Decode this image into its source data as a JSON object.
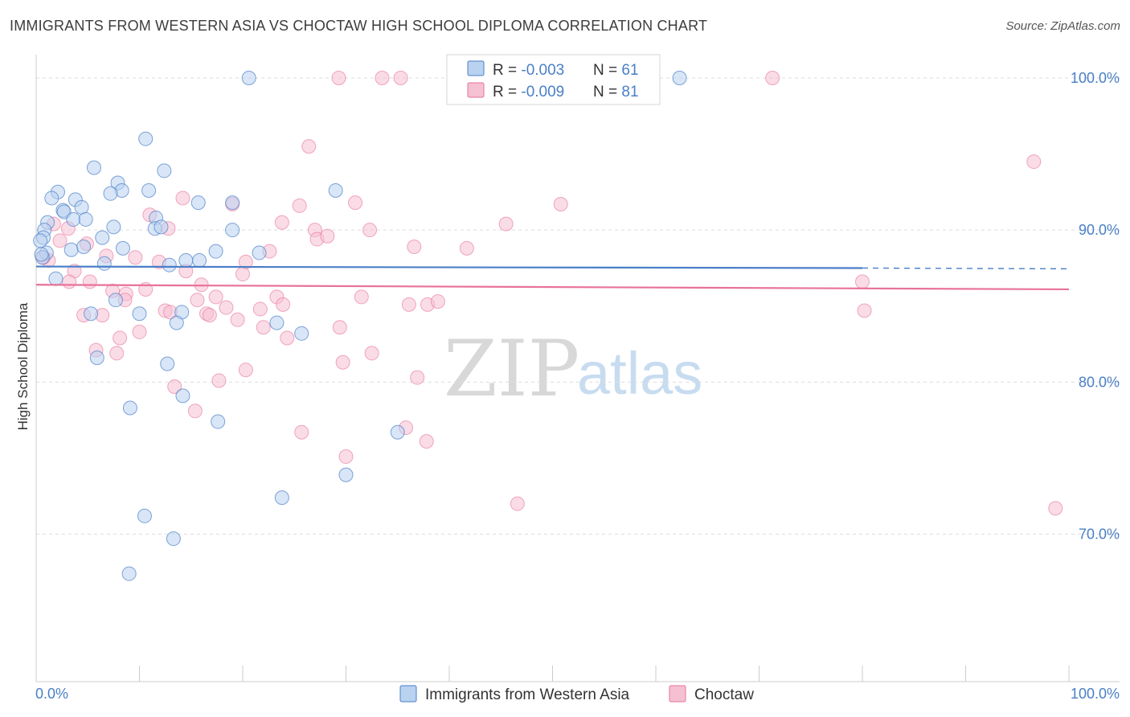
{
  "title": "IMMIGRANTS FROM WESTERN ASIA VS CHOCTAW HIGH SCHOOL DIPLOMA CORRELATION CHART",
  "source": "Source: ZipAtlas.com",
  "watermark": {
    "zip": "ZIP",
    "atlas": "atlas"
  },
  "colors": {
    "blue": "#4a7fc7",
    "blue_fill": "#b9d2f0",
    "pink": "#e8729a",
    "pink_fill": "#f5c0d2",
    "grid": "#dddddd",
    "axis_text": "#4a7fc7"
  },
  "legend": {
    "rows": [
      {
        "r_label": "R = ",
        "r_value": "-0.003",
        "n_label": "N = ",
        "n_value": "61"
      },
      {
        "r_label": "R = ",
        "r_value": "-0.009",
        "n_label": "N = ",
        "n_value": "81"
      }
    ]
  },
  "bottom_legend": [
    "Immigrants from Western Asia",
    "Choctaw"
  ],
  "chart_data": {
    "type": "scatter",
    "title": "IMMIGRANTS FROM WESTERN ASIA VS CHOCTAW HIGH SCHOOL DIPLOMA CORRELATION CHART",
    "xlabel": "",
    "ylabel": "High School Diploma",
    "xlim": [
      0,
      100
    ],
    "ylim": [
      60.3,
      100.9
    ],
    "x_tick_labels": [
      "0.0%",
      "100.0%"
    ],
    "y_ticks": [
      70,
      80,
      90,
      100
    ],
    "y_tick_labels": [
      "70.0%",
      "80.0%",
      "90.0%",
      "100.0%"
    ],
    "grid": true,
    "series": [
      {
        "name": "Immigrants from Western Asia",
        "color": "#4a7fc7",
        "r": -0.003,
        "n": 61,
        "trend": {
          "x0": 0,
          "y0": 87.6,
          "x1": 80,
          "y1": 87.5,
          "dash_to": 100,
          "dash_y": 87.45
        },
        "points": [
          [
            20.6,
            100
          ],
          [
            62.3,
            100
          ],
          [
            10.6,
            96
          ],
          [
            5.6,
            94.1
          ],
          [
            12.4,
            93.9
          ],
          [
            7.9,
            93.1
          ],
          [
            8.3,
            92.6
          ],
          [
            10.9,
            92.6
          ],
          [
            2.1,
            92.5
          ],
          [
            7.2,
            92.4
          ],
          [
            1.5,
            92.1
          ],
          [
            3.8,
            92
          ],
          [
            29,
            92.6
          ],
          [
            15.7,
            91.8
          ],
          [
            19,
            91.8
          ],
          [
            2.6,
            91.3
          ],
          [
            2.7,
            91.2
          ],
          [
            4.4,
            91.5
          ],
          [
            3.6,
            90.7
          ],
          [
            4.8,
            90.7
          ],
          [
            11.6,
            90.8
          ],
          [
            1.1,
            90.5
          ],
          [
            7.5,
            90.2
          ],
          [
            11.5,
            90.1
          ],
          [
            12.1,
            90.2
          ],
          [
            19,
            90
          ],
          [
            0.8,
            90
          ],
          [
            0.7,
            89.5
          ],
          [
            6.4,
            89.5
          ],
          [
            1,
            88.5
          ],
          [
            3.4,
            88.7
          ],
          [
            4.6,
            88.9
          ],
          [
            8.4,
            88.8
          ],
          [
            17.4,
            88.6
          ],
          [
            21.6,
            88.5
          ],
          [
            0.6,
            88.2
          ],
          [
            12.9,
            87.7
          ],
          [
            14.5,
            88
          ],
          [
            15.8,
            88
          ],
          [
            6.6,
            87.8
          ],
          [
            1.9,
            86.8
          ],
          [
            7.7,
            85.4
          ],
          [
            5.3,
            84.5
          ],
          [
            10,
            84.5
          ],
          [
            14.1,
            84.6
          ],
          [
            13.6,
            83.9
          ],
          [
            23.3,
            83.9
          ],
          [
            25.7,
            83.2
          ],
          [
            5.9,
            81.6
          ],
          [
            12.7,
            81.2
          ],
          [
            14.2,
            79.1
          ],
          [
            9.1,
            78.3
          ],
          [
            17.6,
            77.4
          ],
          [
            35,
            76.7
          ],
          [
            30,
            73.9
          ],
          [
            23.8,
            72.4
          ],
          [
            10.5,
            71.2
          ],
          [
            13.3,
            69.7
          ],
          [
            9,
            67.4
          ],
          [
            0.4,
            89.3
          ],
          [
            0.5,
            88.4
          ]
        ]
      },
      {
        "name": "Choctaw",
        "color": "#e8729a",
        "r": -0.009,
        "n": 81,
        "trend": {
          "x0": 0,
          "y0": 86.4,
          "x1": 100,
          "y1": 86.1
        },
        "points": [
          [
            29.3,
            100
          ],
          [
            33.5,
            100
          ],
          [
            35.3,
            100
          ],
          [
            71.3,
            100
          ],
          [
            26.4,
            95.5
          ],
          [
            96.6,
            94.5
          ],
          [
            14.2,
            92.1
          ],
          [
            19,
            91.7
          ],
          [
            30.9,
            91.8
          ],
          [
            50.8,
            91.7
          ],
          [
            25.5,
            91.6
          ],
          [
            11,
            91
          ],
          [
            23.8,
            90.5
          ],
          [
            45.5,
            90.4
          ],
          [
            1.7,
            90.4
          ],
          [
            12.8,
            90.1
          ],
          [
            27,
            90
          ],
          [
            32.3,
            90
          ],
          [
            27.2,
            89.4
          ],
          [
            28.2,
            89.6
          ],
          [
            2.3,
            89.3
          ],
          [
            4.9,
            89.1
          ],
          [
            36.6,
            88.9
          ],
          [
            41.7,
            88.8
          ],
          [
            22.6,
            88.6
          ],
          [
            6.8,
            88.3
          ],
          [
            9.6,
            88.2
          ],
          [
            11.9,
            87.9
          ],
          [
            20.3,
            87.9
          ],
          [
            1.2,
            88
          ],
          [
            0.7,
            88.2
          ],
          [
            3.7,
            87.3
          ],
          [
            14.5,
            87.3
          ],
          [
            20,
            87.1
          ],
          [
            3.2,
            86.6
          ],
          [
            5.2,
            86.6
          ],
          [
            16,
            86.4
          ],
          [
            10.6,
            86.1
          ],
          [
            7.4,
            86
          ],
          [
            8.7,
            85.8
          ],
          [
            17.4,
            85.6
          ],
          [
            8.6,
            85.4
          ],
          [
            15.6,
            85.4
          ],
          [
            23.3,
            85.6
          ],
          [
            37.9,
            85.1
          ],
          [
            36.1,
            85.1
          ],
          [
            38.9,
            85.3
          ],
          [
            31.5,
            85.6
          ],
          [
            23.9,
            85.1
          ],
          [
            18.4,
            84.9
          ],
          [
            21.7,
            84.8
          ],
          [
            12.5,
            84.7
          ],
          [
            13,
            84.6
          ],
          [
            16.5,
            84.5
          ],
          [
            16.8,
            84.4
          ],
          [
            6.4,
            84.4
          ],
          [
            4.6,
            84.4
          ],
          [
            19.5,
            84.1
          ],
          [
            22,
            83.6
          ],
          [
            29.4,
            83.6
          ],
          [
            10,
            83.3
          ],
          [
            8.1,
            82.9
          ],
          [
            24.3,
            82.9
          ],
          [
            5.8,
            82.1
          ],
          [
            7.8,
            81.9
          ],
          [
            32.5,
            81.9
          ],
          [
            29.7,
            81.3
          ],
          [
            20.3,
            80.8
          ],
          [
            17.7,
            80.1
          ],
          [
            36.9,
            80.3
          ],
          [
            13.4,
            79.7
          ],
          [
            15.4,
            78.1
          ],
          [
            25.7,
            76.7
          ],
          [
            35.8,
            77
          ],
          [
            37.8,
            76.1
          ],
          [
            30,
            75.1
          ],
          [
            46.6,
            72
          ],
          [
            98.7,
            71.7
          ],
          [
            80,
            86.6
          ],
          [
            80.2,
            84.7
          ],
          [
            3.1,
            90.1
          ]
        ]
      }
    ]
  }
}
